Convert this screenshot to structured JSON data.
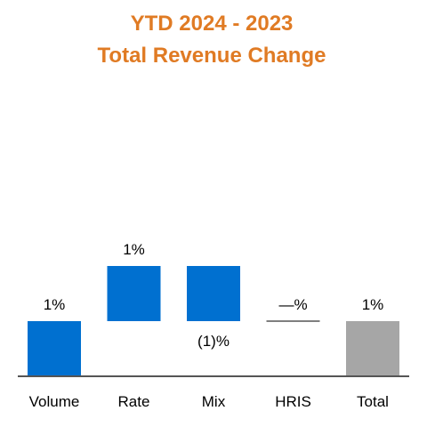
{
  "chart_data": {
    "type": "bar",
    "subtype": "waterfall",
    "title_lines": [
      "YTD 2024 - 2023",
      "Total Revenue Change"
    ],
    "categories": [
      "Volume",
      "Rate",
      "Mix",
      "HRIS",
      "Total"
    ],
    "steps": [
      {
        "category": "Volume",
        "value": 1.0,
        "kind": "increase",
        "label": "1%"
      },
      {
        "category": "Rate",
        "value": 1.0,
        "kind": "increase",
        "label": "1%"
      },
      {
        "category": "Mix",
        "value": -1.0,
        "kind": "decrease",
        "label": "(1)%"
      },
      {
        "category": "HRIS",
        "value": 0.0,
        "kind": "increase",
        "label": "—%"
      },
      {
        "category": "Total",
        "value": 1.0,
        "kind": "total",
        "label": "1%"
      }
    ],
    "ylim": [
      0,
      2.1
    ],
    "grid": false,
    "colors": {
      "title": "#e07b24",
      "increase": "#0070d0",
      "decrease": "#0070d0",
      "total": "#a6a6a6",
      "axis": "#555555"
    }
  }
}
